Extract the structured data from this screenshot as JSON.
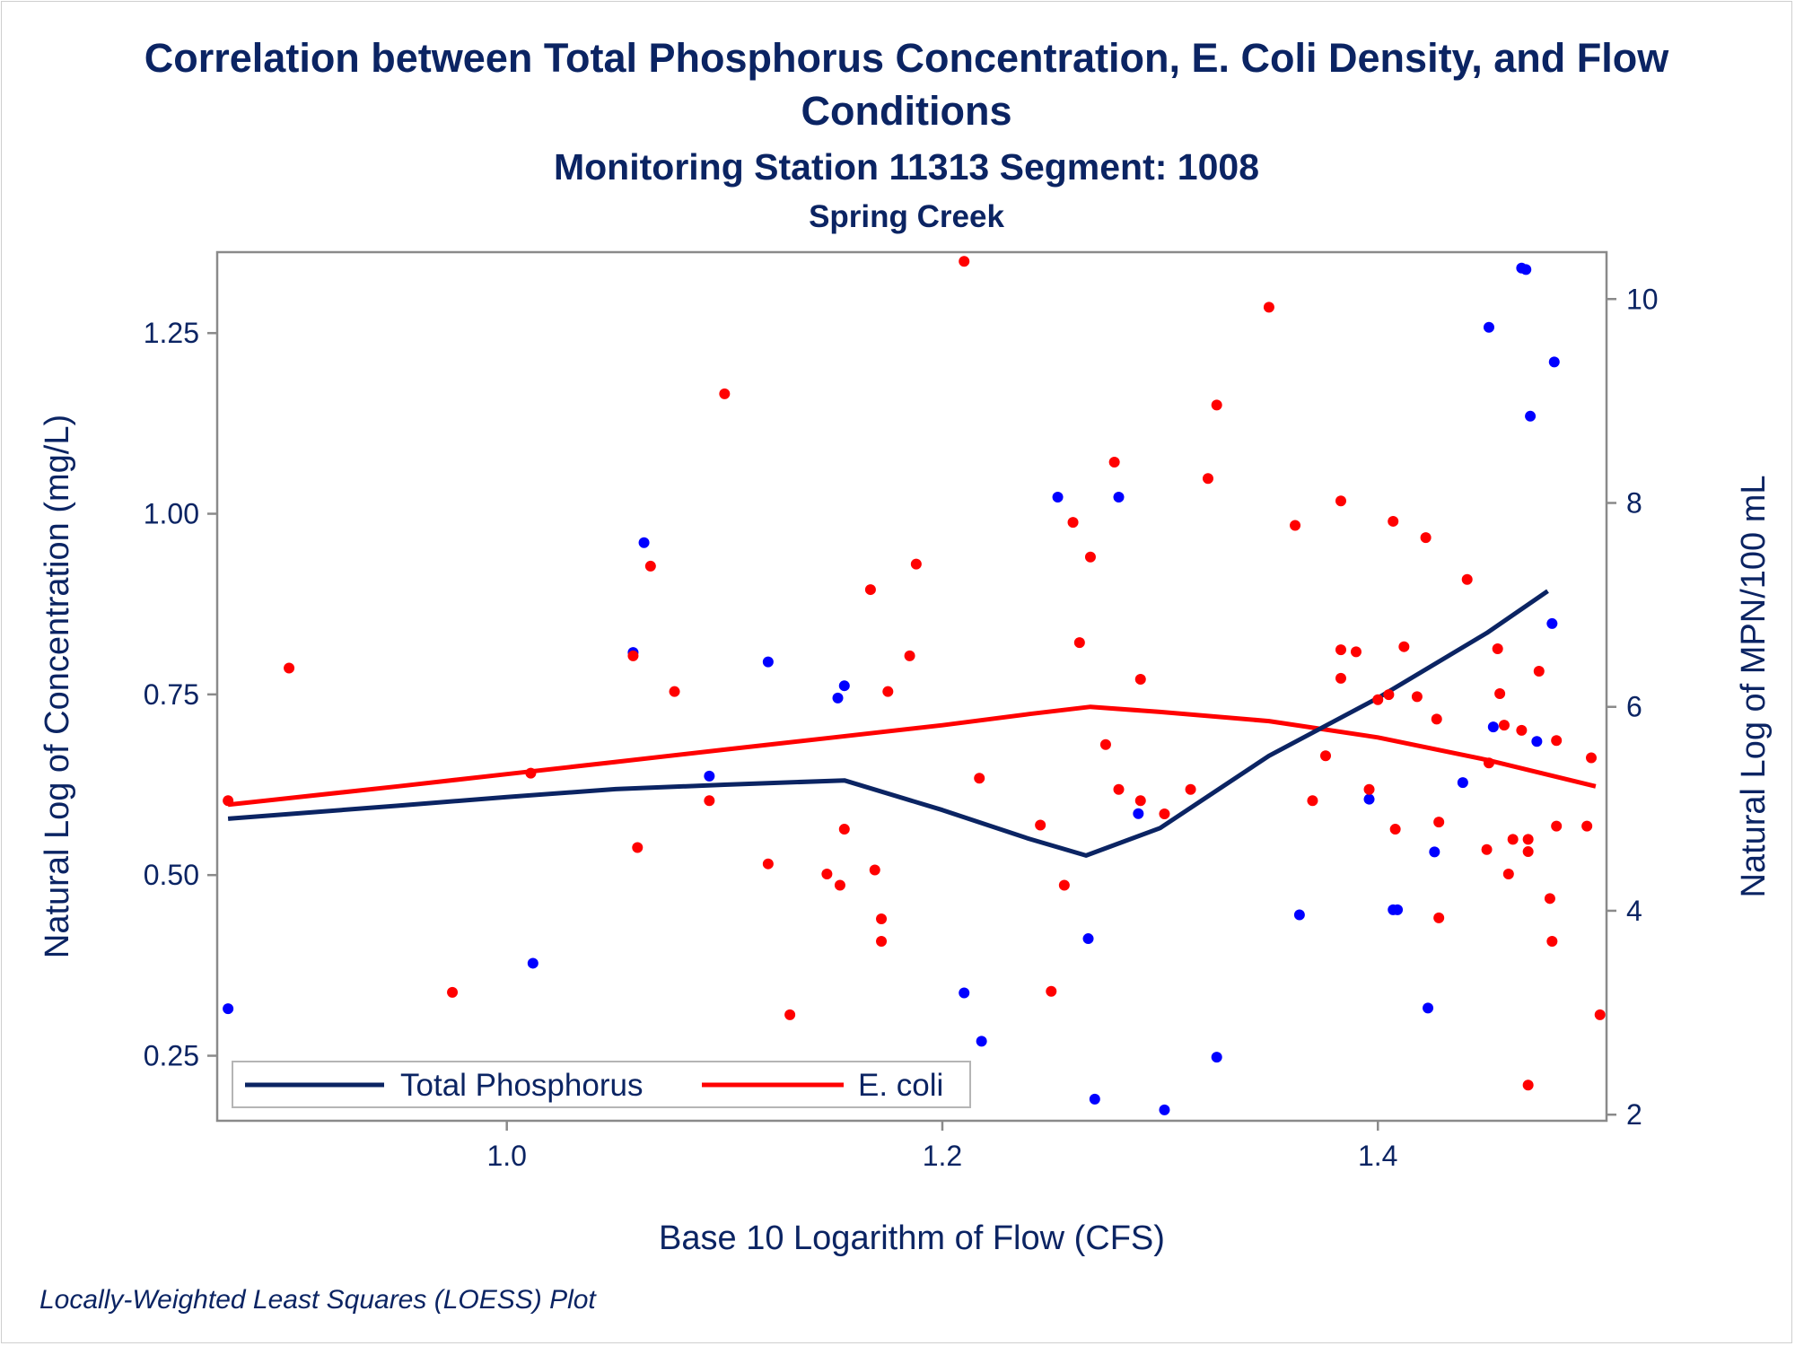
{
  "chart_data": {
    "type": "scatter",
    "title_line1": "Correlation between Total Phosphorus Concentration, E. Coli Density, and Flow",
    "title_line2": "Conditions",
    "subtitle": "Monitoring Station 11313 Segment: 1008",
    "subtitle2": "Spring Creek",
    "footnote": "Locally-Weighted Least Squares (LOESS) Plot",
    "xlabel": "Base 10 Logarithm of Flow (CFS)",
    "ylabel_left": "Natural Log of Concentration (mg/L)",
    "ylabel_right": "Natural Log of MPN/100 mL",
    "xlim": [
      0.867,
      1.505
    ],
    "ylim_left": [
      0.16,
      1.362
    ],
    "ylim_right": [
      1.94,
      10.46
    ],
    "x_ticks": [
      1.0,
      1.2,
      1.4
    ],
    "x_tick_labels": [
      "1.0",
      "1.2",
      "1.4"
    ],
    "y_left_ticks": [
      0.25,
      0.5,
      0.75,
      1.0,
      1.25
    ],
    "y_left_tick_labels": [
      "0.25",
      "0.50",
      "0.75",
      "1.00",
      "1.25"
    ],
    "y_right_ticks": [
      2,
      4,
      6,
      8,
      10
    ],
    "y_right_tick_labels": [
      "2",
      "4",
      "6",
      "8",
      "10"
    ],
    "grid": false,
    "legend_position": "bottom-left inside",
    "series": [
      {
        "name": "Total Phosphorus",
        "axis": "left",
        "color": "#0b2463",
        "marker_color": "#0000ff",
        "points": [
          [
            0.872,
            0.315
          ],
          [
            1.012,
            0.378
          ],
          [
            1.058,
            0.808
          ],
          [
            1.063,
            0.96
          ],
          [
            1.093,
            0.637
          ],
          [
            1.12,
            0.795
          ],
          [
            1.152,
            0.745
          ],
          [
            1.155,
            0.762
          ],
          [
            1.21,
            0.337
          ],
          [
            1.218,
            0.27
          ],
          [
            1.253,
            1.023
          ],
          [
            1.267,
            0.412
          ],
          [
            1.27,
            0.19
          ],
          [
            1.281,
            1.023
          ],
          [
            1.29,
            0.585
          ],
          [
            1.302,
            0.175
          ],
          [
            1.326,
            0.248
          ],
          [
            1.364,
            0.445
          ],
          [
            1.396,
            0.605
          ],
          [
            1.407,
            0.452
          ],
          [
            1.409,
            0.452
          ],
          [
            1.423,
            0.316
          ],
          [
            1.426,
            0.532
          ],
          [
            1.439,
            0.628
          ],
          [
            1.451,
            1.258
          ],
          [
            1.453,
            0.705
          ],
          [
            1.466,
            1.34
          ],
          [
            1.468,
            1.338
          ],
          [
            1.47,
            1.135
          ],
          [
            1.473,
            0.685
          ],
          [
            1.48,
            0.848
          ],
          [
            1.481,
            1.21
          ]
        ],
        "loess": [
          [
            0.872,
            0.578
          ],
          [
            0.95,
            0.596
          ],
          [
            1.0,
            0.608
          ],
          [
            1.05,
            0.619
          ],
          [
            1.1,
            0.625
          ],
          [
            1.155,
            0.631
          ],
          [
            1.2,
            0.59
          ],
          [
            1.24,
            0.55
          ],
          [
            1.266,
            0.527
          ],
          [
            1.3,
            0.565
          ],
          [
            1.35,
            0.665
          ],
          [
            1.4,
            0.745
          ],
          [
            1.45,
            0.835
          ],
          [
            1.478,
            0.893
          ]
        ]
      },
      {
        "name": "E. coli",
        "axis": "right",
        "color": "#ff0000",
        "marker_color": "#ff0000",
        "points": [
          [
            0.872,
            5.08
          ],
          [
            0.9,
            6.38
          ],
          [
            0.975,
            3.2
          ],
          [
            1.011,
            5.35
          ],
          [
            1.058,
            6.5
          ],
          [
            1.06,
            4.62
          ],
          [
            1.066,
            7.38
          ],
          [
            1.077,
            6.15
          ],
          [
            1.093,
            5.08
          ],
          [
            1.1,
            9.07
          ],
          [
            1.12,
            4.46
          ],
          [
            1.13,
            2.98
          ],
          [
            1.147,
            4.36
          ],
          [
            1.153,
            4.25
          ],
          [
            1.155,
            4.8
          ],
          [
            1.167,
            7.15
          ],
          [
            1.169,
            4.4
          ],
          [
            1.172,
            3.92
          ],
          [
            1.172,
            3.7
          ],
          [
            1.175,
            6.15
          ],
          [
            1.185,
            6.5
          ],
          [
            1.188,
            7.4
          ],
          [
            1.21,
            10.37
          ],
          [
            1.217,
            5.3
          ],
          [
            1.245,
            4.84
          ],
          [
            1.25,
            3.21
          ],
          [
            1.256,
            4.25
          ],
          [
            1.26,
            7.81
          ],
          [
            1.263,
            6.63
          ],
          [
            1.268,
            7.47
          ],
          [
            1.275,
            5.63
          ],
          [
            1.279,
            8.4
          ],
          [
            1.281,
            5.19
          ],
          [
            1.291,
            5.08
          ],
          [
            1.291,
            6.27
          ],
          [
            1.302,
            4.95
          ],
          [
            1.314,
            5.19
          ],
          [
            1.322,
            8.24
          ],
          [
            1.326,
            8.96
          ],
          [
            1.35,
            9.92
          ],
          [
            1.362,
            7.78
          ],
          [
            1.37,
            5.08
          ],
          [
            1.376,
            5.52
          ],
          [
            1.383,
            8.02
          ],
          [
            1.383,
            6.28
          ],
          [
            1.383,
            6.56
          ],
          [
            1.39,
            6.54
          ],
          [
            1.396,
            5.19
          ],
          [
            1.4,
            6.07
          ],
          [
            1.405,
            6.12
          ],
          [
            1.407,
            7.82
          ],
          [
            1.408,
            4.8
          ],
          [
            1.412,
            6.59
          ],
          [
            1.418,
            6.1
          ],
          [
            1.422,
            7.66
          ],
          [
            1.427,
            5.88
          ],
          [
            1.428,
            3.93
          ],
          [
            1.428,
            4.87
          ],
          [
            1.441,
            7.25
          ],
          [
            1.45,
            4.6
          ],
          [
            1.451,
            5.45
          ],
          [
            1.455,
            6.57
          ],
          [
            1.456,
            6.13
          ],
          [
            1.458,
            5.82
          ],
          [
            1.46,
            4.36
          ],
          [
            1.462,
            4.7
          ],
          [
            1.466,
            5.77
          ],
          [
            1.469,
            4.58
          ],
          [
            1.469,
            4.7
          ],
          [
            1.469,
            2.29
          ],
          [
            1.474,
            6.35
          ],
          [
            1.479,
            4.12
          ],
          [
            1.48,
            3.7
          ],
          [
            1.482,
            5.67
          ],
          [
            1.482,
            4.83
          ],
          [
            1.496,
            4.83
          ],
          [
            1.498,
            5.5
          ],
          [
            1.502,
            2.98
          ]
        ],
        "loess": [
          [
            0.872,
            5.04
          ],
          [
            0.95,
            5.22
          ],
          [
            1.0,
            5.34
          ],
          [
            1.05,
            5.46
          ],
          [
            1.1,
            5.58
          ],
          [
            1.15,
            5.7
          ],
          [
            1.2,
            5.82
          ],
          [
            1.24,
            5.93
          ],
          [
            1.268,
            6.0
          ],
          [
            1.3,
            5.95
          ],
          [
            1.35,
            5.86
          ],
          [
            1.4,
            5.7
          ],
          [
            1.45,
            5.48
          ],
          [
            1.5,
            5.22
          ]
        ]
      }
    ]
  }
}
